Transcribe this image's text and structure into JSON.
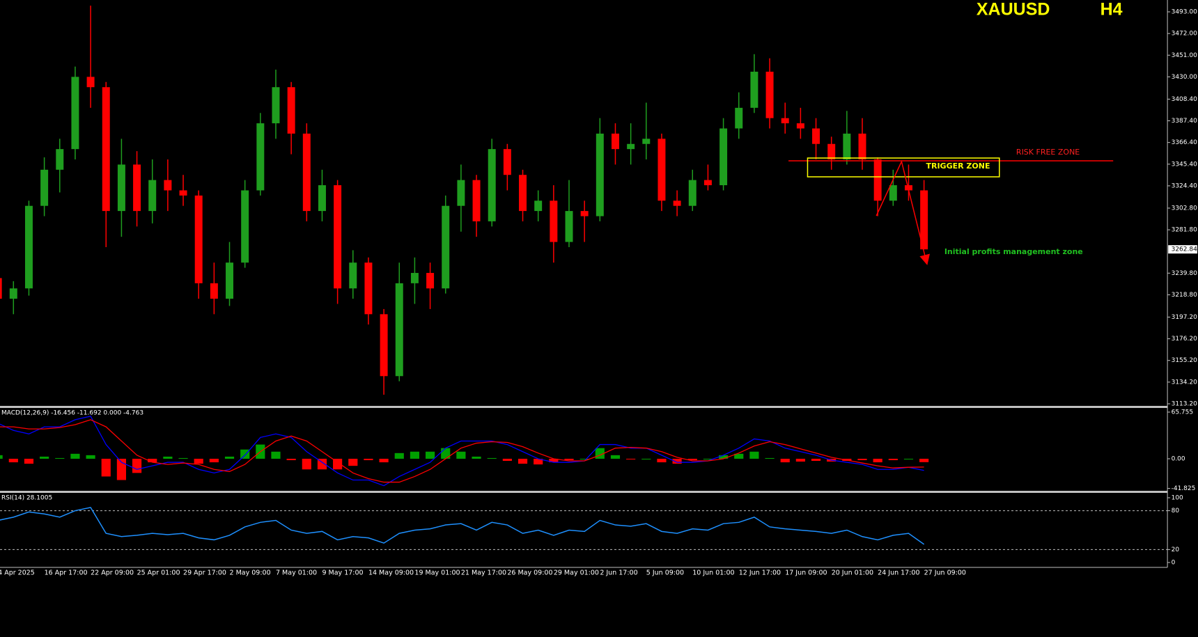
{
  "chart_data": [
    {
      "type": "candlestick",
      "title": "XAUUSD",
      "timeframe": "H4",
      "up_color": "#1f9e1f",
      "down_color": "#ff0000",
      "annotations": [
        "RISK FREE ZONE",
        "TRIGGER ZONE",
        "Initial profits management zone"
      ],
      "categories": [
        "4 Apr 2025",
        null,
        null,
        "16 Apr 17:00",
        null,
        null,
        "22 Apr 09:00",
        null,
        null,
        "25 Apr 01:00",
        null,
        null,
        "29 Apr 17:00",
        null,
        null,
        "2 May 09:00",
        null,
        null,
        "7 May 01:00",
        null,
        null,
        "9 May 17:00",
        null,
        null,
        "14 May 09:00",
        null,
        null,
        "19 May 01:00",
        null,
        null,
        "21 May 17:00",
        null,
        null,
        "26 May 09:00",
        null,
        null,
        "29 May 01:00",
        null,
        null,
        "2 Jun 17:00",
        null,
        null,
        "5 Jun 09:00",
        null,
        null,
        "10 Jun 01:00",
        null,
        null,
        "12 Jun 17:00",
        null,
        null,
        "17 Jun 09:00",
        null,
        null,
        "20 Jun 01:00",
        null,
        null,
        "24 Jun 17:00",
        null,
        null,
        "27 Jun 09:00"
      ],
      "candles": [
        [
          3235,
          3245,
          3205,
          3215
        ],
        [
          3215,
          3232,
          3200,
          3225
        ],
        [
          3225,
          3310,
          3218,
          3305
        ],
        [
          3305,
          3352,
          3295,
          3340
        ],
        [
          3340,
          3370,
          3318,
          3360
        ],
        [
          3360,
          3440,
          3350,
          3430
        ],
        [
          3430,
          3499,
          3400,
          3420
        ],
        [
          3420,
          3425,
          3265,
          3300
        ],
        [
          3300,
          3370,
          3275,
          3345
        ],
        [
          3345,
          3358,
          3285,
          3300
        ],
        [
          3300,
          3350,
          3288,
          3330
        ],
        [
          3330,
          3350,
          3300,
          3320
        ],
        [
          3320,
          3335,
          3305,
          3315
        ],
        [
          3315,
          3320,
          3215,
          3230
        ],
        [
          3230,
          3250,
          3200,
          3215
        ],
        [
          3215,
          3270,
          3208,
          3250
        ],
        [
          3250,
          3330,
          3245,
          3320
        ],
        [
          3320,
          3395,
          3315,
          3385
        ],
        [
          3385,
          3437,
          3370,
          3420
        ],
        [
          3420,
          3425,
          3355,
          3375
        ],
        [
          3375,
          3385,
          3290,
          3300
        ],
        [
          3300,
          3340,
          3290,
          3325
        ],
        [
          3325,
          3330,
          3210,
          3225
        ],
        [
          3225,
          3262,
          3215,
          3250
        ],
        [
          3250,
          3255,
          3190,
          3200
        ],
        [
          3200,
          3205,
          3122,
          3140
        ],
        [
          3140,
          3250,
          3135,
          3230
        ],
        [
          3230,
          3255,
          3210,
          3240
        ],
        [
          3240,
          3250,
          3205,
          3225
        ],
        [
          3225,
          3315,
          3220,
          3305
        ],
        [
          3305,
          3345,
          3280,
          3330
        ],
        [
          3330,
          3335,
          3275,
          3290
        ],
        [
          3290,
          3370,
          3285,
          3360
        ],
        [
          3360,
          3365,
          3320,
          3335
        ],
        [
          3335,
          3340,
          3290,
          3300
        ],
        [
          3300,
          3320,
          3290,
          3310
        ],
        [
          3310,
          3325,
          3250,
          3270
        ],
        [
          3270,
          3330,
          3265,
          3300
        ],
        [
          3300,
          3310,
          3270,
          3295
        ],
        [
          3295,
          3390,
          3290,
          3375
        ],
        [
          3375,
          3385,
          3345,
          3360
        ],
        [
          3360,
          3385,
          3345,
          3365
        ],
        [
          3365,
          3405,
          3350,
          3370
        ],
        [
          3370,
          3375,
          3300,
          3310
        ],
        [
          3310,
          3320,
          3295,
          3305
        ],
        [
          3305,
          3340,
          3300,
          3330
        ],
        [
          3330,
          3345,
          3320,
          3325
        ],
        [
          3325,
          3390,
          3320,
          3380
        ],
        [
          3380,
          3415,
          3370,
          3400
        ],
        [
          3400,
          3452,
          3395,
          3435
        ],
        [
          3435,
          3448,
          3380,
          3390
        ],
        [
          3390,
          3405,
          3375,
          3385
        ],
        [
          3385,
          3400,
          3370,
          3380
        ],
        [
          3380,
          3390,
          3350,
          3365
        ],
        [
          3365,
          3372,
          3340,
          3350
        ],
        [
          3350,
          3397,
          3345,
          3375
        ],
        [
          3375,
          3390,
          3340,
          3350
        ],
        [
          3350,
          3352,
          3295,
          3310
        ],
        [
          3310,
          3340,
          3305,
          3325
        ],
        [
          3325,
          3345,
          3310,
          3320
        ],
        [
          3320,
          3330,
          3262.84,
          3262.84
        ]
      ],
      "ylim": [
        3111.85,
        3504.47
      ],
      "yticks": [
        {
          "value": 3493,
          "label": "3493.00"
        },
        {
          "value": 3472,
          "label": "3472.00"
        },
        {
          "value": 3451,
          "label": "3451.00"
        },
        {
          "value": 3430,
          "label": "3430.00"
        },
        {
          "value": 3408.4,
          "label": "3408.40"
        },
        {
          "value": 3387.4,
          "label": "3387.40"
        },
        {
          "value": 3366.4,
          "label": "3366.40"
        },
        {
          "value": 3345.4,
          "label": "3345.40"
        },
        {
          "value": 3324.4,
          "label": "3324.40"
        },
        {
          "value": 3302.8,
          "label": "3302.80"
        },
        {
          "value": 3281.8,
          "label": "3281.80"
        },
        {
          "value": 3239.8,
          "label": "3239.80"
        },
        {
          "value": 3218.8,
          "label": "3218.80"
        },
        {
          "value": 3197.2,
          "label": "3197.20"
        },
        {
          "value": 3176.2,
          "label": "3176.20"
        },
        {
          "value": 3155.2,
          "label": "3155.20"
        },
        {
          "value": 3134.2,
          "label": "3134.20"
        },
        {
          "value": 3113.2,
          "label": "3113.20"
        }
      ]
    },
    {
      "type": "macd",
      "label": "MACD(12,26,9) -16.456 -11.692 0.000 -4.763",
      "up_color": "#00a000",
      "down_color": "#ff0000",
      "histogram": [
        5,
        -5,
        -7,
        3,
        1,
        7,
        5,
        -25,
        -30,
        -20,
        -5,
        3,
        1,
        -7,
        -5,
        3,
        13,
        20,
        10,
        -2,
        -15,
        -15,
        -15,
        -10,
        -2,
        -5,
        8,
        10,
        10,
        15,
        10,
        3,
        1,
        -3,
        -7,
        -8,
        -5,
        -2,
        0,
        15,
        5,
        -1,
        0,
        -5,
        -7,
        -2,
        0,
        5,
        7,
        10,
        1,
        -5,
        -4,
        -3,
        -4,
        -3,
        -2,
        -5,
        -2,
        0,
        -4.763
      ],
      "series": [
        {
          "name": "MACD",
          "color": "#0000ff",
          "values": [
            50,
            40,
            35,
            45,
            45,
            55,
            60,
            20,
            -5,
            -15,
            -10,
            -5,
            -5,
            -15,
            -20,
            -15,
            5,
            30,
            35,
            30,
            10,
            -5,
            -20,
            -30,
            -30,
            -38,
            -25,
            -15,
            -5,
            15,
            25,
            25,
            25,
            20,
            10,
            0,
            -5,
            -5,
            -3,
            20,
            20,
            15,
            15,
            5,
            -5,
            -5,
            -3,
            5,
            15,
            28,
            25,
            15,
            10,
            5,
            -2,
            -5,
            -8,
            -15,
            -15,
            -12,
            -16.456
          ]
        },
        {
          "name": "Signal",
          "color": "#ff0000",
          "values": [
            45,
            45,
            42,
            42,
            44,
            48,
            55,
            45,
            25,
            5,
            -5,
            -8,
            -6,
            -8,
            -15,
            -18,
            -8,
            10,
            25,
            32,
            25,
            10,
            -5,
            -20,
            -28,
            -33,
            -33,
            -25,
            -15,
            0,
            15,
            22,
            24,
            23,
            17,
            8,
            0,
            -3,
            -3,
            5,
            15,
            16,
            15,
            10,
            2,
            -3,
            -3,
            0,
            8,
            18,
            24,
            20,
            14,
            8,
            2,
            -2,
            -6,
            -10,
            -13,
            -12,
            -11.692
          ]
        }
      ],
      "ylim": [
        -44.2,
        71.6
      ],
      "yticks": [
        65.755,
        {
          "value": 0,
          "label": "0.00"
        },
        -41.825
      ]
    },
    {
      "type": "line",
      "label": "RSI(14) 28.1005",
      "series": [
        {
          "name": "RSI",
          "color": "#1e90ff",
          "values": [
            65,
            70,
            78,
            75,
            70,
            80,
            85,
            45,
            40,
            42,
            45,
            43,
            45,
            38,
            35,
            42,
            55,
            62,
            65,
            50,
            45,
            48,
            35,
            40,
            38,
            30,
            45,
            50,
            52,
            58,
            60,
            50,
            62,
            58,
            45,
            50,
            42,
            50,
            48,
            65,
            58,
            56,
            60,
            48,
            45,
            52,
            50,
            60,
            62,
            70,
            55,
            52,
            50,
            48,
            45,
            50,
            40,
            35,
            42,
            45,
            28.1005
          ]
        }
      ],
      "levels": [
        80,
        20
      ],
      "ylim": [
        -5.4,
        107.5
      ],
      "yticks": [
        100,
        80,
        20,
        0
      ]
    }
  ]
}
